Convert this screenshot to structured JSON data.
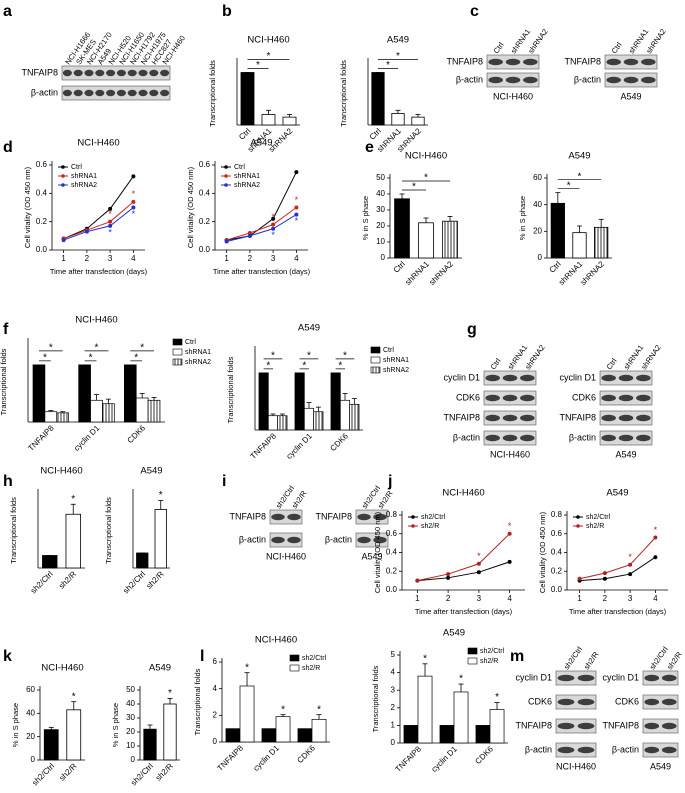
{
  "panel_labels": [
    "a",
    "b",
    "c",
    "d",
    "e",
    "f",
    "g",
    "h",
    "i",
    "j",
    "k",
    "l",
    "m"
  ],
  "blots": [
    {
      "lanes": [
        "NCI-H1666",
        "SK-MES",
        "NCI-H2170",
        "A549",
        "NCI-H520",
        "NCI-H1650",
        "NCI-H1792",
        "NCI-H1975",
        "HCC827",
        "NCI-H460"
      ],
      "rows": [
        "TNFAIP8",
        "β-actin"
      ]
    },
    {
      "lanes": [
        "Ctrl",
        "shRNA1",
        "shRNA2"
      ],
      "rows": [
        "TNFAIP8",
        "β-actin"
      ],
      "caption": "NCI-H460"
    },
    {
      "lanes": [
        "Ctrl",
        "shRNA1",
        "shRNA2"
      ],
      "rows": [
        "TNFAIP8",
        "β-actin"
      ],
      "caption": "A549"
    },
    {
      "lanes": [
        "Ctrl",
        "shRNA1",
        "shRNA2"
      ],
      "rows": [
        "cyclin D1",
        "CDK6",
        "TNFAIP8",
        "β-actin"
      ],
      "caption": "NCI-H460"
    },
    {
      "lanes": [
        "Ctrl",
        "shRNA1",
        "shRNA2"
      ],
      "rows": [
        "cyclin D1",
        "CDK6",
        "TNFAIP8",
        "β-actin"
      ],
      "caption": "A549"
    },
    {
      "lanes": [
        "sh2/Ctrl",
        "sh2/R"
      ],
      "rows": [
        "TNFAIP8",
        "β-actin"
      ],
      "caption": "NCI-H460"
    },
    {
      "lanes": [
        "sh2/Ctrl",
        "sh2/R"
      ],
      "rows": [
        "TNFAIP8",
        "β-actin"
      ],
      "caption": "A549"
    },
    {
      "lanes": [
        "sh2/Ctrl",
        "sh2/R"
      ],
      "rows": [
        "cyclin D1",
        "CDK6",
        "TNFAIP8",
        "β-actin"
      ],
      "caption": "NCI-H460"
    },
    {
      "lanes": [
        "sh2/Ctrl",
        "sh2/R"
      ],
      "rows": [
        "cyclin D1",
        "CDK6",
        "TNFAIP8",
        "β-actin"
      ],
      "caption": "A549"
    }
  ],
  "chart_data": [
    {
      "type": "bar",
      "title": "NCI-H460",
      "ylabel": "Transcriptional folds",
      "categories": [
        "Ctrl",
        "shRNA1",
        "shRNA2"
      ],
      "values": [
        1,
        0.2,
        0.15
      ],
      "errors": [
        0,
        0.08,
        0.05
      ],
      "colors": [
        "#000000",
        "#ffffff",
        "#ffffff"
      ],
      "hatched": [
        false,
        false,
        false
      ],
      "ylim": [
        0,
        1.2
      ],
      "annotations": [
        {
          "from": 0,
          "to": 1,
          "label": "*"
        },
        {
          "from": 0,
          "to": 2,
          "label": "*"
        }
      ]
    },
    {
      "type": "bar",
      "title": "A549",
      "ylabel": "Transcriptional folds",
      "categories": [
        "Ctrl",
        "shRNA1",
        "shRNA2"
      ],
      "values": [
        1,
        0.22,
        0.15
      ],
      "errors": [
        0,
        0.06,
        0.05
      ],
      "colors": [
        "#000000",
        "#ffffff",
        "#ffffff"
      ],
      "hatched": [
        false,
        false,
        false
      ],
      "ylim": [
        0,
        1.2
      ],
      "annotations": [
        {
          "from": 0,
          "to": 1,
          "label": "*"
        },
        {
          "from": 0,
          "to": 2,
          "label": "*"
        }
      ]
    },
    {
      "type": "line",
      "title": "NCI-H460",
      "xlabel": "Time after transfection (days)",
      "ylabel": "Cell vitality (OD 450 nm)",
      "x": [
        1,
        2,
        3,
        4
      ],
      "xlim": [
        0.5,
        4.5
      ],
      "xticks": [
        1,
        2,
        3,
        4
      ],
      "ylim": [
        0,
        0.6
      ],
      "yticks": [
        {
          "value": 0,
          "label": "0.0"
        },
        {
          "value": 0.2,
          "label": "0.2"
        },
        {
          "value": 0.4,
          "label": "0.4"
        },
        {
          "value": 0.6,
          "label": "0.6"
        }
      ],
      "legend": "upper left",
      "series": [
        {
          "name": "Ctrl",
          "color": "#000000",
          "values": [
            0.08,
            0.15,
            0.29,
            0.52
          ]
        },
        {
          "name": "shRNA1",
          "color": "#cc2222",
          "values": [
            0.08,
            0.14,
            0.2,
            0.34
          ]
        },
        {
          "name": "shRNA2",
          "color": "#2233cc",
          "values": [
            0.07,
            0.13,
            0.17,
            0.3
          ]
        }
      ],
      "annotations": [
        {
          "series": 1,
          "index": 2,
          "label": "*"
        },
        {
          "series": 2,
          "index": 2,
          "label": "*"
        },
        {
          "series": 1,
          "index": 3,
          "label": "*"
        },
        {
          "series": 2,
          "index": 3,
          "label": "*"
        }
      ]
    },
    {
      "type": "line",
      "title": "A549",
      "xlabel": "Time after transfection (days)",
      "ylabel": "Cell vitality (OD 450 nm)",
      "x": [
        1,
        2,
        3,
        4
      ],
      "xlim": [
        0.5,
        4.5
      ],
      "xticks": [
        1,
        2,
        3,
        4
      ],
      "ylim": [
        0,
        0.6
      ],
      "yticks": [
        {
          "value": 0,
          "label": "0.0"
        },
        {
          "value": 0.2,
          "label": "0.2"
        },
        {
          "value": 0.4,
          "label": "0.4"
        },
        {
          "value": 0.6,
          "label": "0.6"
        }
      ],
      "legend": "upper left",
      "series": [
        {
          "name": "Ctrl",
          "color": "#000000",
          "values": [
            0.07,
            0.1,
            0.22,
            0.55
          ]
        },
        {
          "name": "shRNA1",
          "color": "#cc2222",
          "values": [
            0.07,
            0.12,
            0.18,
            0.3
          ]
        },
        {
          "name": "shRNA2",
          "color": "#2233cc",
          "values": [
            0.06,
            0.1,
            0.15,
            0.25
          ]
        }
      ],
      "annotations": [
        {
          "series": 1,
          "index": 2,
          "label": "*"
        },
        {
          "series": 2,
          "index": 2,
          "label": "*"
        },
        {
          "series": 1,
          "index": 3,
          "label": "*"
        },
        {
          "series": 2,
          "index": 3,
          "label": "*"
        }
      ]
    },
    {
      "type": "bar",
      "title": "NCI-H460",
      "ylabel": "% in S phase",
      "categories": [
        "Ctrl",
        "shRNA1",
        "shRNA2"
      ],
      "values": [
        37,
        22,
        23
      ],
      "errors": [
        3,
        3,
        3
      ],
      "colors": [
        "#000000",
        "#ffffff",
        "#ffffff"
      ],
      "hatched": [
        false,
        false,
        true
      ],
      "ylim": [
        0,
        50
      ],
      "yticks": [
        0,
        10,
        20,
        30,
        40,
        50
      ],
      "annotations": [
        {
          "from": 0,
          "to": 1,
          "label": "*"
        },
        {
          "from": 0,
          "to": 2,
          "label": "*"
        }
      ]
    },
    {
      "type": "bar",
      "title": "A549",
      "ylabel": "% in S phase",
      "categories": [
        "Ctrl",
        "shRNA1",
        "shRNA2"
      ],
      "values": [
        41,
        19,
        23
      ],
      "errors": [
        8,
        5,
        6
      ],
      "colors": [
        "#000000",
        "#ffffff",
        "#ffffff"
      ],
      "hatched": [
        false,
        false,
        true
      ],
      "ylim": [
        0,
        60
      ],
      "yticks": [
        0,
        20,
        40,
        60
      ],
      "annotations": [
        {
          "from": 0,
          "to": 1,
          "label": "*"
        },
        {
          "from": 0,
          "to": 2,
          "label": "*"
        }
      ]
    },
    {
      "type": "bar",
      "title": "NCI-H460",
      "ylabel": "Transcriptional folds",
      "categories": [
        "TNFAIP8",
        "cyclin D1",
        "CDK6"
      ],
      "ylim": [
        0,
        1.4
      ],
      "legend": "right",
      "series": [
        {
          "name": "Ctrl",
          "color": "#000000",
          "hatched": false,
          "values": [
            1,
            1,
            1
          ]
        },
        {
          "name": "shRNA1",
          "color": "#ffffff",
          "hatched": false,
          "values": [
            0.18,
            0.38,
            0.42
          ],
          "errors": [
            0.02,
            0.1,
            0.08
          ]
        },
        {
          "name": "shRNA2",
          "color": "#ffffff",
          "hatched": true,
          "values": [
            0.16,
            0.32,
            0.38
          ],
          "errors": [
            0.02,
            0.08,
            0.05
          ]
        }
      ],
      "annotations": [
        {
          "category": 0,
          "from": 0,
          "to": 1,
          "label": "*"
        },
        {
          "category": 0,
          "from": 0,
          "to": 2,
          "label": "*"
        },
        {
          "category": 1,
          "from": 0,
          "to": 1,
          "label": "*"
        },
        {
          "category": 1,
          "from": 0,
          "to": 2,
          "label": "*"
        },
        {
          "category": 2,
          "from": 0,
          "to": 1,
          "label": "*"
        },
        {
          "category": 2,
          "from": 0,
          "to": 2,
          "label": "*"
        }
      ]
    },
    {
      "type": "bar",
      "title": "A549",
      "ylabel": "Transcriptional folds",
      "categories": [
        "TNFAIP8",
        "cyclin D1",
        "CDK6"
      ],
      "ylim": [
        0,
        1.4
      ],
      "legend": "right",
      "series": [
        {
          "name": "Ctrl",
          "color": "#000000",
          "hatched": false,
          "values": [
            1,
            1,
            1
          ]
        },
        {
          "name": "shRNA1",
          "color": "#ffffff",
          "hatched": false,
          "values": [
            0.25,
            0.38,
            0.52
          ],
          "errors": [
            0.03,
            0.1,
            0.12
          ]
        },
        {
          "name": "shRNA2",
          "color": "#ffffff",
          "hatched": true,
          "values": [
            0.25,
            0.32,
            0.45
          ],
          "errors": [
            0.03,
            0.08,
            0.1
          ]
        }
      ],
      "annotations": [
        {
          "category": 0,
          "from": 0,
          "to": 1,
          "label": "*"
        },
        {
          "category": 0,
          "from": 0,
          "to": 2,
          "label": "*"
        },
        {
          "category": 1,
          "from": 0,
          "to": 1,
          "label": "*"
        },
        {
          "category": 1,
          "from": 0,
          "to": 2,
          "label": "*"
        },
        {
          "category": 2,
          "from": 0,
          "to": 1,
          "label": "*"
        },
        {
          "category": 2,
          "from": 0,
          "to": 2,
          "label": "*"
        }
      ]
    },
    {
      "type": "bar",
      "title": "NCI-H460",
      "ylabel": "Transcriptional folds",
      "categories": [
        "sh2/Ctrl",
        "sh2/R"
      ],
      "values": [
        1,
        4.3
      ],
      "errors": [
        0,
        0.8
      ],
      "colors": [
        "#000000",
        "#ffffff"
      ],
      "hatched": [
        false,
        false
      ],
      "ylim": [
        0,
        6
      ],
      "annotations": [
        {
          "index": 1,
          "label": "*"
        }
      ]
    },
    {
      "type": "bar",
      "title": "A549",
      "ylabel": "Transcriptional folds",
      "categories": [
        "sh2/Ctrl",
        "sh2/R"
      ],
      "values": [
        1,
        3.9
      ],
      "errors": [
        0,
        0.6
      ],
      "colors": [
        "#000000",
        "#ffffff"
      ],
      "hatched": [
        false,
        false
      ],
      "ylim": [
        0,
        5
      ],
      "annotations": [
        {
          "index": 1,
          "label": "*"
        }
      ]
    },
    {
      "type": "line",
      "title": "NCI-H460",
      "xlabel": "Time after transfection (days)",
      "ylabel": "Cell vitality (OD 450 nm)",
      "x": [
        1,
        2,
        3,
        4
      ],
      "xlim": [
        0.5,
        4.5
      ],
      "xticks": [
        1,
        2,
        3,
        4
      ],
      "ylim": [
        0,
        0.8
      ],
      "yticks": [
        {
          "value": 0,
          "label": "0.0"
        },
        {
          "value": 0.2,
          "label": "0.2"
        },
        {
          "value": 0.4,
          "label": "0.4"
        },
        {
          "value": 0.6,
          "label": "0.6"
        },
        {
          "value": 0.8,
          "label": "0.8"
        }
      ],
      "legend": "upper left",
      "series": [
        {
          "name": "sh2/Ctrl",
          "color": "#000000",
          "values": [
            0.1,
            0.13,
            0.19,
            0.3
          ]
        },
        {
          "name": "sh2/R",
          "color": "#b22222",
          "values": [
            0.1,
            0.17,
            0.28,
            0.6
          ]
        }
      ],
      "annotations": [
        {
          "series": 1,
          "index": 2,
          "label": "*"
        },
        {
          "series": 1,
          "index": 3,
          "label": "*"
        }
      ]
    },
    {
      "type": "line",
      "title": "A549",
      "xlabel": "Time after transfection (days)",
      "ylabel": "Cell vitality (OD 450 nm)",
      "x": [
        1,
        2,
        3,
        4
      ],
      "xlim": [
        0.5,
        4.5
      ],
      "xticks": [
        1,
        2,
        3,
        4
      ],
      "ylim": [
        0,
        0.8
      ],
      "yticks": [
        {
          "value": 0,
          "label": "0.0"
        },
        {
          "value": 0.2,
          "label": "0.2"
        },
        {
          "value": 0.4,
          "label": "0.4"
        },
        {
          "value": 0.6,
          "label": "0.6"
        },
        {
          "value": 0.8,
          "label": "0.8"
        }
      ],
      "legend": "upper left",
      "series": [
        {
          "name": "sh2/Ctrl",
          "color": "#000000",
          "values": [
            0.1,
            0.12,
            0.17,
            0.35
          ]
        },
        {
          "name": "sh2/R",
          "color": "#b22222",
          "values": [
            0.12,
            0.18,
            0.27,
            0.56
          ]
        }
      ],
      "annotations": [
        {
          "series": 1,
          "index": 2,
          "label": "*"
        },
        {
          "series": 1,
          "index": 3,
          "label": "*"
        }
      ]
    },
    {
      "type": "bar",
      "title": "NCI-H460",
      "ylabel": "% in S phase",
      "categories": [
        "sh2/Ctrl",
        "sh2/R"
      ],
      "values": [
        26,
        43
      ],
      "errors": [
        2,
        7
      ],
      "colors": [
        "#000000",
        "#ffffff"
      ],
      "hatched": [
        false,
        false
      ],
      "ylim": [
        0,
        60
      ],
      "yticks": [
        0,
        20,
        40,
        60
      ],
      "annotations": [
        {
          "index": 1,
          "label": "*"
        }
      ]
    },
    {
      "type": "bar",
      "title": "A549",
      "ylabel": "% in S phase",
      "categories": [
        "sh2/Ctrl",
        "sh2/R"
      ],
      "values": [
        22,
        40
      ],
      "errors": [
        3,
        4
      ],
      "colors": [
        "#000000",
        "#ffffff"
      ],
      "hatched": [
        false,
        false
      ],
      "ylim": [
        0,
        50
      ],
      "yticks": [
        0,
        10,
        20,
        30,
        40,
        50
      ],
      "annotations": [
        {
          "index": 1,
          "label": "*"
        }
      ]
    },
    {
      "type": "bar",
      "title": "NCI-H460",
      "ylabel": "Transcriptional folds",
      "categories": [
        "TNFAIP8",
        "cyclin D1",
        "CDK6"
      ],
      "ylim": [
        0,
        6
      ],
      "yticks": [
        0,
        2,
        4,
        6
      ],
      "legend": "upper right",
      "series": [
        {
          "name": "sh2/Ctrl",
          "color": "#000000",
          "hatched": false,
          "values": [
            1,
            1,
            1
          ]
        },
        {
          "name": "sh2/R",
          "color": "#ffffff",
          "hatched": false,
          "values": [
            4.2,
            1.9,
            1.7
          ],
          "errors": [
            1,
            0.15,
            0.35
          ]
        }
      ],
      "annotations": [
        {
          "category": 0,
          "series": 1,
          "label": "*"
        },
        {
          "category": 1,
          "series": 1,
          "label": "*"
        },
        {
          "category": 2,
          "series": 1,
          "label": "*"
        }
      ]
    },
    {
      "type": "bar",
      "title": "A549",
      "ylabel": "Transcriptional folds",
      "categories": [
        "TNFAIP8",
        "cyclin D1",
        "CDK6"
      ],
      "ylim": [
        0,
        5
      ],
      "yticks": [
        0,
        1,
        2,
        3,
        4,
        5
      ],
      "legend": "upper right",
      "series": [
        {
          "name": "sh2/Ctrl",
          "color": "#000000",
          "hatched": false,
          "values": [
            1,
            1,
            1
          ]
        },
        {
          "name": "sh2/R",
          "color": "#ffffff",
          "hatched": false,
          "values": [
            3.8,
            2.9,
            1.9
          ],
          "errors": [
            0.7,
            0.45,
            0.4
          ]
        }
      ],
      "annotations": [
        {
          "category": 0,
          "series": 1,
          "label": "*"
        },
        {
          "category": 1,
          "series": 1,
          "label": "*"
        },
        {
          "category": 2,
          "series": 1,
          "label": "*"
        }
      ]
    }
  ]
}
